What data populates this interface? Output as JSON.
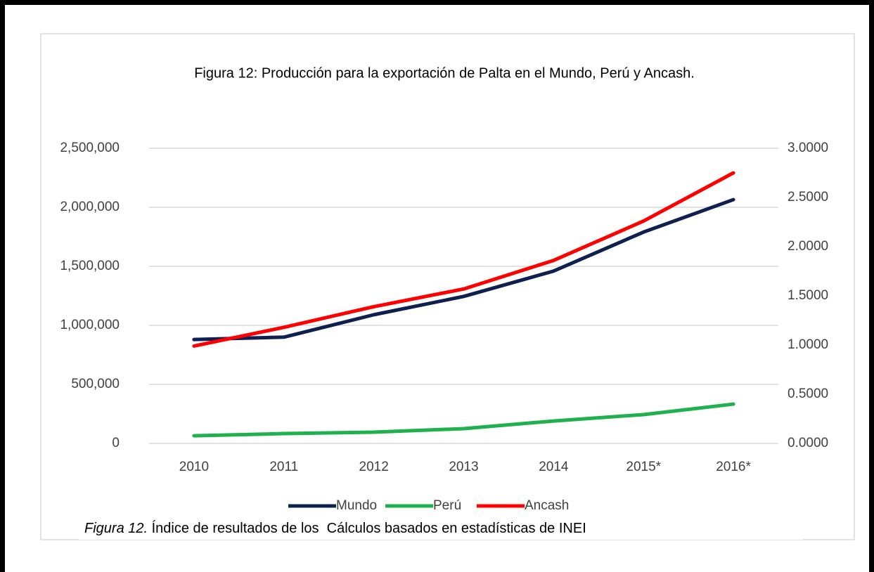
{
  "chart_data": {
    "type": "line",
    "title": "Figura 12: Producción para la exportación de Palta en el Mundo, Perú y Ancash.",
    "categories": [
      "2010",
      "2011",
      "2012",
      "2013",
      "2014",
      "2015*",
      "2016*"
    ],
    "series": [
      {
        "name": "Mundo",
        "color": "#0f1f4f",
        "values": [
          880000,
          900000,
          1090000,
          1245000,
          1460000,
          1790000,
          2065000
        ]
      },
      {
        "name": "Perú",
        "color": "#1fb14e",
        "values": [
          65000,
          83000,
          95000,
          125000,
          190000,
          244000,
          333000
        ]
      },
      {
        "name": "Ancash",
        "color": "#ff0000",
        "axis": "y2",
        "values": [
          0.99,
          1.18,
          1.39,
          1.57,
          1.86,
          2.26,
          2.75
        ]
      }
    ],
    "ylim": [
      0,
      2500000
    ],
    "yticks": [
      0,
      {
        "value": 500000,
        "label": "500,000"
      },
      {
        "value": 1000000,
        "label": "1,000,000"
      },
      {
        "value": 1500000,
        "label": "1,500,000"
      },
      {
        "value": 2000000,
        "label": "2,000,000"
      },
      {
        "value": 2500000,
        "label": "2,500,000"
      }
    ],
    "y2lim": [
      0,
      3
    ],
    "y2ticks": [
      {
        "value": 0,
        "label": "0.0000"
      },
      {
        "value": 0.5,
        "label": "0.5000"
      },
      {
        "value": 1,
        "label": "1.0000"
      },
      {
        "value": 1.5,
        "label": "1.5000"
      },
      {
        "value": 2,
        "label": "2.0000"
      },
      {
        "value": 2.5,
        "label": "2.5000"
      },
      {
        "value": 3,
        "label": "3.0000"
      }
    ],
    "grid": true,
    "legend": "bottom"
  },
  "caption": {
    "label": "Figura 12.",
    "text": " Índice de resultados de los  Cálculos basados en estadísticas de INEI"
  }
}
